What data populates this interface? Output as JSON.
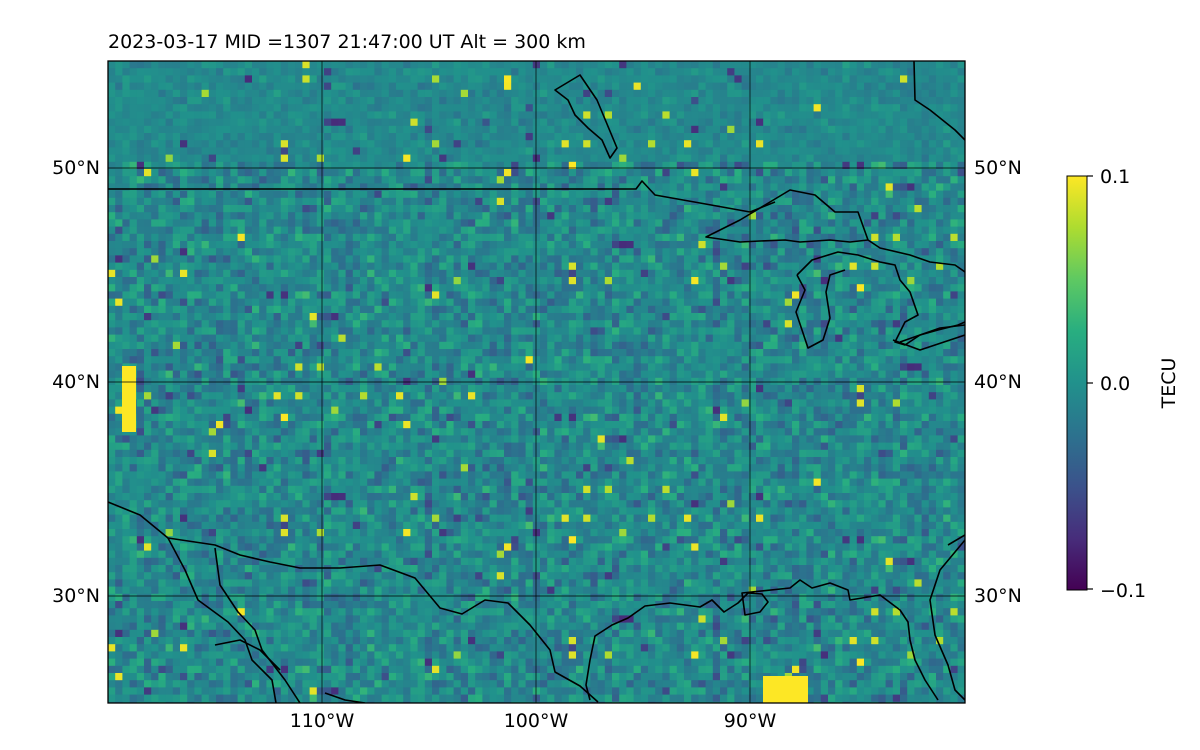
{
  "title": "2023-03-17  MID =1307    21:47:00  UT  Alt = 300 km",
  "lon_labels": [
    "110°W",
    "100°W",
    "90°W"
  ],
  "lat_labels": [
    "50°N",
    "40°N",
    "30°N"
  ],
  "colorbar": {
    "label": "TECU",
    "tick_labels": [
      "0.1",
      "0.0",
      "−0.1"
    ],
    "vmin": -0.1,
    "vmax": 0.1,
    "colormap": "viridis"
  },
  "map": {
    "extent_lon": [
      -120,
      -80
    ],
    "extent_lat": [
      25,
      55
    ],
    "gridlines": true,
    "grid_lon": [
      -110,
      -100,
      -90
    ],
    "grid_lat": [
      30,
      40,
      50
    ],
    "features": [
      "coastlines",
      "US-Canada border",
      "US-Mexico border",
      "Great Lakes"
    ]
  },
  "colors": {
    "background_field": "#2a7f8e",
    "coastline": "#000000",
    "colormap_low": "#440154",
    "colormap_mid": "#21918c",
    "colormap_high": "#fde725"
  }
}
